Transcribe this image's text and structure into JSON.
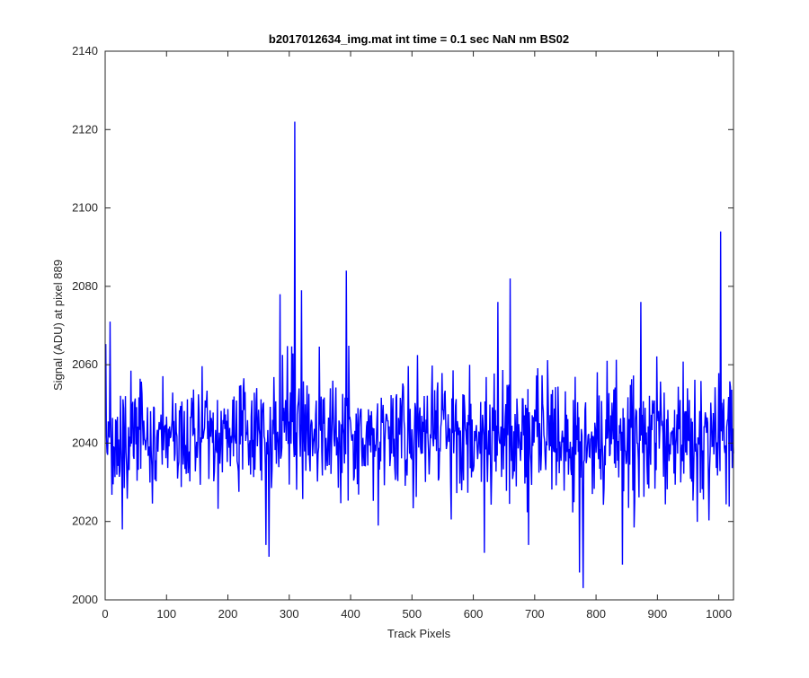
{
  "chart_data": {
    "type": "line",
    "title": "b2017012634_img.mat int time = 0.1 sec  NaN nm BS02",
    "xlabel": "Track Pixels",
    "ylabel": "Signal (ADU) at pixel 889",
    "xlim": [
      0,
      1024
    ],
    "ylim": [
      2000,
      2140
    ],
    "xticks": [
      0,
      100,
      200,
      300,
      400,
      500,
      600,
      700,
      800,
      900,
      1000
    ],
    "yticks": [
      2000,
      2020,
      2040,
      2060,
      2080,
      2100,
      2120,
      2140
    ],
    "grid": false,
    "line_color": "#0000ff",
    "axes_color": "#262626",
    "series": [
      {
        "x_start": 1,
        "x_step": 1,
        "noise": {
          "mean": 2042,
          "std": 8
        },
        "notable_points": [
          {
            "x": 8,
            "y": 2071
          },
          {
            "x": 28,
            "y": 2018
          },
          {
            "x": 262,
            "y": 2014
          },
          {
            "x": 267,
            "y": 2011
          },
          {
            "x": 285,
            "y": 2078
          },
          {
            "x": 309,
            "y": 2122
          },
          {
            "x": 320,
            "y": 2079
          },
          {
            "x": 393,
            "y": 2084
          },
          {
            "x": 618,
            "y": 2012
          },
          {
            "x": 640,
            "y": 2076
          },
          {
            "x": 660,
            "y": 2082
          },
          {
            "x": 690,
            "y": 2014
          },
          {
            "x": 773,
            "y": 2007
          },
          {
            "x": 779,
            "y": 2003
          },
          {
            "x": 843,
            "y": 2009
          },
          {
            "x": 873,
            "y": 2076
          },
          {
            "x": 1003,
            "y": 2094
          }
        ]
      }
    ]
  }
}
